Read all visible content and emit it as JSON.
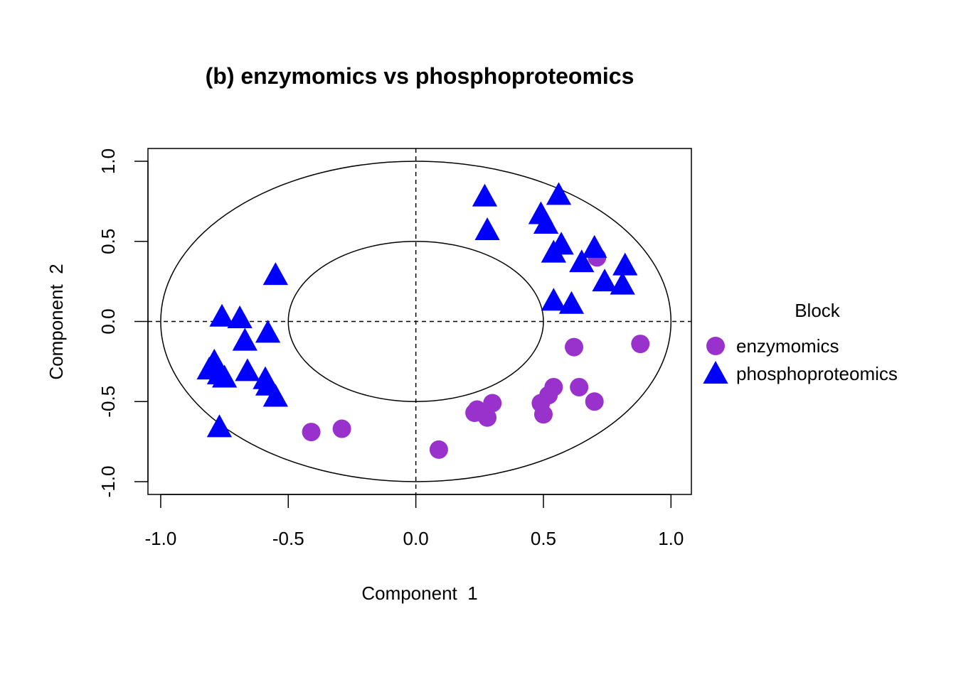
{
  "chart_data": {
    "type": "scatter",
    "title": "(b) enzymomics vs phosphoproteomics",
    "xlabel": "Component  1",
    "ylabel": "Component  2",
    "xlim": [
      -1.05,
      1.08
    ],
    "ylim": [
      -1.08,
      1.08
    ],
    "x_ticks": [
      "-1.0",
      "-0.5",
      "0.0",
      "0.5",
      "1.0"
    ],
    "y_ticks": [
      "-1.0",
      "-0.5",
      "0.0",
      "0.5",
      "1.0"
    ],
    "circles": [
      0.5,
      1.0
    ],
    "reference_lines": {
      "x": 0,
      "y": 0,
      "style": "dashed"
    },
    "legend": {
      "title": "Block",
      "placement": "right"
    },
    "series": [
      {
        "name": "enzymomics",
        "marker": "circle",
        "color": "#9932CC",
        "points": [
          [
            0.88,
            -0.14
          ],
          [
            0.62,
            -0.16
          ],
          [
            0.71,
            0.4
          ],
          [
            0.64,
            -0.41
          ],
          [
            0.7,
            -0.5
          ],
          [
            0.54,
            -0.41
          ],
          [
            0.52,
            -0.46
          ],
          [
            0.49,
            -0.51
          ],
          [
            0.5,
            -0.58
          ],
          [
            0.3,
            -0.51
          ],
          [
            0.24,
            -0.55
          ],
          [
            0.23,
            -0.57
          ],
          [
            0.28,
            -0.6
          ],
          [
            0.09,
            -0.8
          ],
          [
            -0.29,
            -0.67
          ],
          [
            -0.41,
            -0.69
          ]
        ]
      },
      {
        "name": "phosphoproteomics",
        "marker": "triangle",
        "color": "#0000FF",
        "points": [
          [
            0.27,
            0.78
          ],
          [
            0.28,
            0.57
          ],
          [
            0.56,
            0.79
          ],
          [
            0.49,
            0.67
          ],
          [
            0.51,
            0.61
          ],
          [
            0.57,
            0.48
          ],
          [
            0.54,
            0.43
          ],
          [
            0.7,
            0.46
          ],
          [
            0.65,
            0.37
          ],
          [
            0.82,
            0.35
          ],
          [
            0.74,
            0.25
          ],
          [
            0.81,
            0.23
          ],
          [
            0.54,
            0.13
          ],
          [
            0.61,
            0.11
          ],
          [
            -0.55,
            0.29
          ],
          [
            -0.76,
            0.03
          ],
          [
            -0.69,
            0.02
          ],
          [
            -0.67,
            -0.12
          ],
          [
            -0.58,
            -0.07
          ],
          [
            -0.79,
            -0.25
          ],
          [
            -0.81,
            -0.3
          ],
          [
            -0.77,
            -0.33
          ],
          [
            -0.75,
            -0.35
          ],
          [
            -0.66,
            -0.31
          ],
          [
            -0.59,
            -0.36
          ],
          [
            -0.58,
            -0.4
          ],
          [
            -0.55,
            -0.47
          ],
          [
            -0.77,
            -0.66
          ]
        ]
      }
    ]
  }
}
